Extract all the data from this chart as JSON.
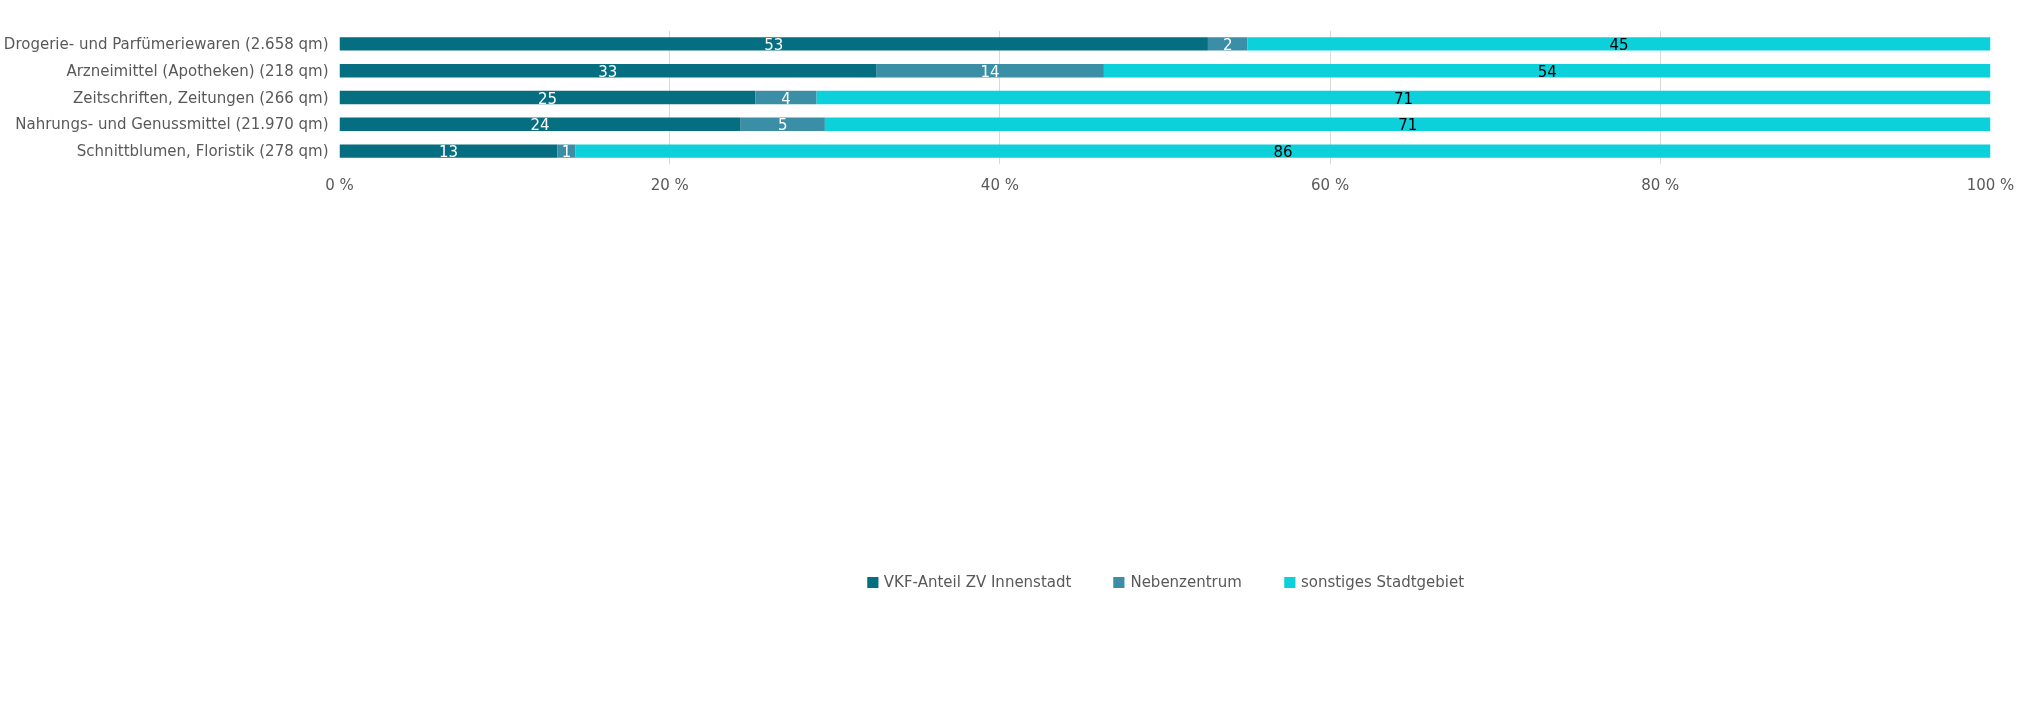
{
  "chart_data": {
    "type": "bar",
    "orientation": "horizontal",
    "stacked": true,
    "categories": [
      "Drogerie- und Parfümeriewaren (2.658 qm)",
      "Arzneimittel (Apotheken) (218 qm)",
      "Zeitschriften, Zeitungen (266 qm)",
      "Nahrungs- und Genussmittel (21.970 qm)",
      "Schnittblumen, Floristik (278 qm)"
    ],
    "series": [
      {
        "name": "VKF-Anteil ZV Innenstadt",
        "color": "#056e80",
        "values": [
          52.6,
          32.5,
          25.2,
          24.3,
          13.2
        ],
        "value_labels": [
          "53",
          "33",
          "25",
          "24",
          "13"
        ]
      },
      {
        "name": "Nebenzentrum",
        "color": "#3a8fa6",
        "values": [
          2.4,
          13.8,
          3.7,
          5.1,
          1.1
        ],
        "value_labels": [
          "2",
          "14",
          "4",
          "5",
          "1"
        ]
      },
      {
        "name": "sonstiges Stadtgebiet",
        "color": "#0cd0da",
        "values": [
          45.0,
          53.7,
          71.1,
          70.6,
          85.7
        ],
        "value_labels": [
          "45",
          "54",
          "71",
          "71",
          "86"
        ]
      }
    ],
    "xlim": [
      0,
      100
    ],
    "xticks": [
      {
        "value": 0,
        "label": "0 %"
      },
      {
        "value": 20,
        "label": "20 %"
      },
      {
        "value": 40,
        "label": "40 %"
      },
      {
        "value": 60,
        "label": "60 %"
      },
      {
        "value": 80,
        "label": "80 %"
      },
      {
        "value": 100,
        "label": "100 %"
      }
    ],
    "grid": "x",
    "legend": "bottom"
  }
}
